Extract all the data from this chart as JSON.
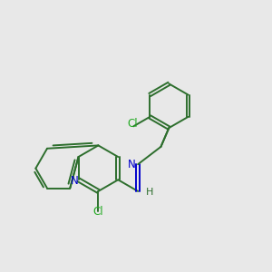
{
  "background_color": "#e8e8e8",
  "bond_color": "#2d6e2d",
  "nitrogen_color": "#0000cc",
  "chlorine_color": "#22aa22",
  "bond_width": 1.4,
  "figsize": [
    3.0,
    3.0
  ],
  "dpi": 100,
  "xlim": [
    0,
    10
  ],
  "ylim": [
    0,
    10
  ]
}
